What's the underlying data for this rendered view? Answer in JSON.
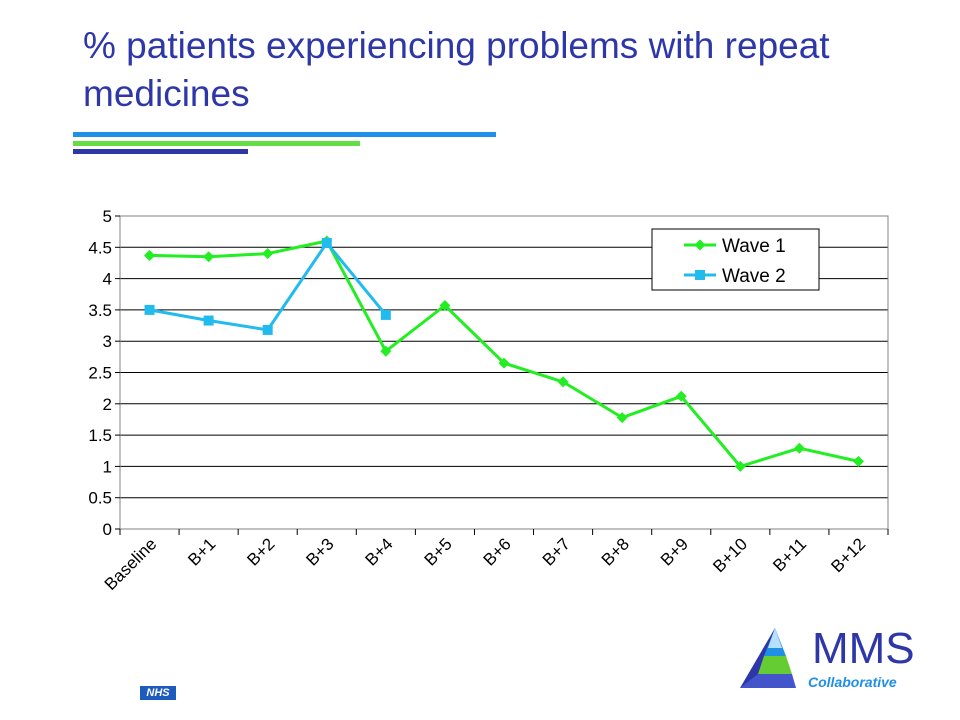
{
  "slide": {
    "title": "% patients experiencing problems with repeat medicines"
  },
  "footer": {
    "nhs_label": "NHS",
    "brand_name": "MMS",
    "brand_sub": "Collaborative"
  },
  "chart_data": {
    "type": "line",
    "title": "",
    "xlabel": "",
    "ylabel": "",
    "categories": [
      "Baseline",
      "B+1",
      "B+2",
      "B+3",
      "B+4",
      "B+5",
      "B+6",
      "B+7",
      "B+8",
      "B+9",
      "B+10",
      "B+11",
      "B+12"
    ],
    "ylim": [
      0,
      5
    ],
    "yticks": [
      "0",
      "0.5",
      "1",
      "1.5",
      "2",
      "2.5",
      "3",
      "3.5",
      "4",
      "4.5",
      "5"
    ],
    "grid": true,
    "legend_position": "top-right",
    "series": [
      {
        "name": "Wave 1",
        "color": "#22ee22",
        "marker": "diamond",
        "values": [
          4.37,
          4.35,
          4.4,
          4.6,
          2.84,
          3.57,
          2.65,
          2.35,
          1.78,
          2.12,
          1.0,
          1.29,
          1.08
        ]
      },
      {
        "name": "Wave 2",
        "color": "#22bbee",
        "marker": "square",
        "values": [
          3.5,
          3.33,
          3.18,
          4.57,
          3.42,
          null,
          null,
          null,
          null,
          null,
          null,
          null,
          null
        ]
      }
    ]
  }
}
